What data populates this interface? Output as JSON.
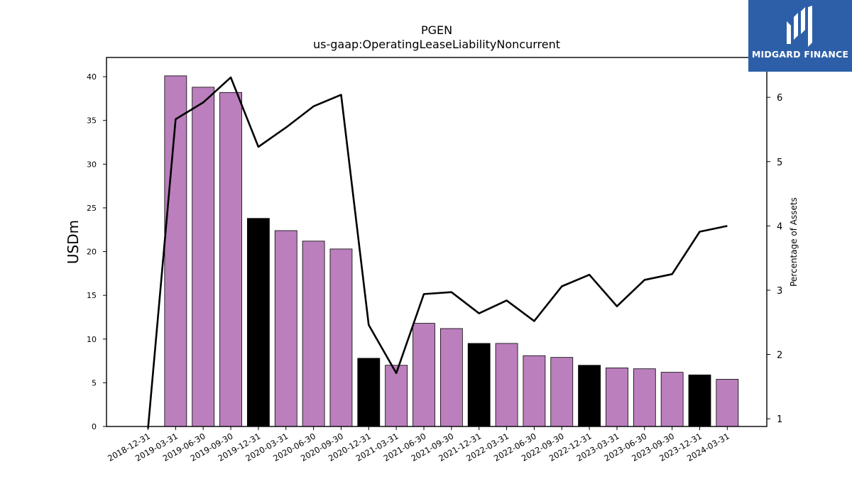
{
  "chart_data": {
    "type": "bar",
    "title": "PGEN",
    "subtitle": "us-gaap:OperatingLeaseLiabilityNoncurrent",
    "ylabel": "USDm",
    "y2label": "Percentage of Assets",
    "categories": [
      "2018-12-31",
      "2019-03-31",
      "2019-06-30",
      "2019-09-30",
      "2019-12-31",
      "2020-03-31",
      "2020-06-30",
      "2020-09-30",
      "2020-12-31",
      "2021-03-31",
      "2021-06-30",
      "2021-09-30",
      "2021-12-31",
      "2022-03-31",
      "2022-06-30",
      "2022-09-30",
      "2022-12-31",
      "2023-03-31",
      "2023-06-30",
      "2023-09-30",
      "2023-12-31",
      "2024-03-31"
    ],
    "series": [
      {
        "type": "bar",
        "axis": "left",
        "values": [
          null,
          40.1,
          38.8,
          38.2,
          23.8,
          22.4,
          21.2,
          20.3,
          7.8,
          7.0,
          11.8,
          11.2,
          9.5,
          9.5,
          8.1,
          7.9,
          7.0,
          6.7,
          6.6,
          6.2,
          5.9,
          5.4
        ],
        "colors": [
          "#bb7fbd",
          "#bb7fbd",
          "#bb7fbd",
          "#bb7fbd",
          "#000000",
          "#bb7fbd",
          "#bb7fbd",
          "#bb7fbd",
          "#000000",
          "#bb7fbd",
          "#bb7fbd",
          "#bb7fbd",
          "#000000",
          "#bb7fbd",
          "#bb7fbd",
          "#bb7fbd",
          "#000000",
          "#bb7fbd",
          "#bb7fbd",
          "#bb7fbd",
          "#000000",
          "#bb7fbd"
        ]
      },
      {
        "type": "line",
        "axis": "right",
        "color": "#000000",
        "values": [
          0.85,
          5.66,
          5.92,
          6.31,
          5.23,
          5.53,
          5.86,
          6.04,
          2.46,
          1.71,
          2.94,
          2.97,
          2.64,
          2.84,
          2.52,
          3.06,
          3.24,
          2.75,
          3.16,
          3.25,
          3.91,
          4.0
        ]
      }
    ],
    "ylim": [
      0,
      42.2
    ],
    "y2lim": [
      0.88,
      6.62
    ],
    "yticks": [
      0,
      5,
      10,
      15,
      20,
      25,
      30,
      35,
      40
    ],
    "y2ticks": [
      1,
      2,
      3,
      4,
      5,
      6
    ],
    "grid": false,
    "legend": "none"
  },
  "logo": {
    "text": "MIDGARD FINANCE",
    "icon": "midgard-logo-icon",
    "background": "#2d5fa8"
  }
}
